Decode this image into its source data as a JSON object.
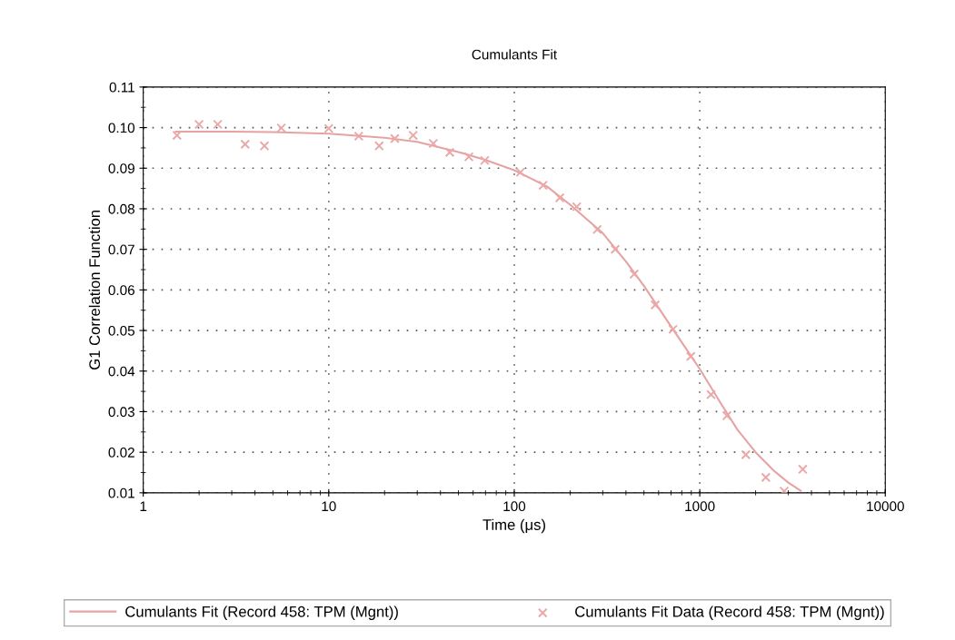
{
  "chart_data": {
    "type": "line",
    "title": "Cumulants Fit",
    "xlabel": "Time (μs)",
    "ylabel": "G1 Correlation Function",
    "log": "x",
    "xlim": [
      1,
      10000
    ],
    "xticks": [
      1,
      10,
      100,
      1000,
      10000
    ],
    "ylim": [
      0.01,
      0.11
    ],
    "yticks": [
      0.01,
      0.02,
      0.03,
      0.04,
      0.05,
      0.06,
      0.07,
      0.08,
      0.09,
      {
        "value": 0.1,
        "label": "0.10"
      },
      0.11
    ],
    "grid": true,
    "legend": "bottom",
    "series": [
      {
        "name": "Cumulants Fit (Record 458: TPM (Mgnt))",
        "color": "#e6a3a3",
        "marker": "none",
        "line_style": "solid",
        "x": [
          1.5,
          3,
          5,
          10,
          20,
          30,
          50,
          70,
          100,
          150,
          200,
          300,
          400,
          500,
          700,
          1000,
          1300,
          1600,
          2000,
          2500,
          3000,
          3500
        ],
        "values": [
          0.099,
          0.099,
          0.0989,
          0.0985,
          0.0975,
          0.0965,
          0.094,
          0.092,
          0.0895,
          0.0855,
          0.081,
          0.074,
          0.067,
          0.061,
          0.051,
          0.0405,
          0.032,
          0.0255,
          0.02,
          0.0155,
          0.0125,
          0.0105
        ]
      },
      {
        "name": "Cumulants Fit Data (Record 458: TPM (Mgnt))",
        "type": "scatter",
        "color": "#eaa8a8",
        "marker": "cross",
        "x": [
          1.52,
          2.0,
          2.52,
          3.54,
          4.5,
          5.55,
          10,
          14.5,
          18.7,
          22.7,
          28.5,
          36.6,
          44.9,
          56.9,
          69.3,
          108,
          143,
          176,
          217,
          280,
          350,
          443,
          575,
          717,
          894,
          1150,
          1400,
          1770,
          2270,
          2850,
          3590
        ],
        "values": [
          0.0981,
          0.1008,
          0.1008,
          0.0959,
          0.0955,
          0.0999,
          0.0998,
          0.0979,
          0.0955,
          0.0973,
          0.0981,
          0.0961,
          0.0939,
          0.0928,
          0.0919,
          0.089,
          0.0858,
          0.0827,
          0.0805,
          0.0749,
          0.07,
          0.0639,
          0.0563,
          0.0503,
          0.0436,
          0.0342,
          0.029,
          0.0194,
          0.0138,
          0.0104,
          0.0158
        ]
      }
    ]
  }
}
